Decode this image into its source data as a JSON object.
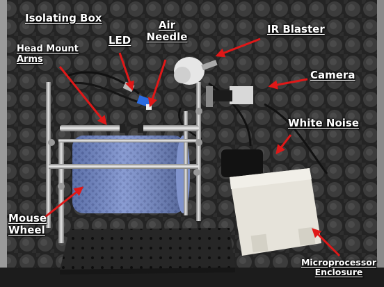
{
  "labels": {
    "isolating_box": "Isolating Box",
    "led": "LED",
    "air_needle_line1": "Air",
    "air_needle_line2": "Needle",
    "ir_blaster": "IR Blaster",
    "head_mount_line1": "Head Mount",
    "head_mount_line2": "Arms",
    "camera": "Camera",
    "white_noise": "White Noise",
    "mouse_wheel_line1": "Mouse",
    "mouse_wheel_line2": "Wheel",
    "micro_line1": "Microprocessor",
    "micro_line2": "Enclosure"
  },
  "colors": {
    "foam": "#2b2b2b",
    "arrow": "#e01818",
    "label_text": "#ffffff",
    "wheel": "#6f86c8",
    "breadboard": "#262626",
    "enclosure": "#e6e3da"
  }
}
